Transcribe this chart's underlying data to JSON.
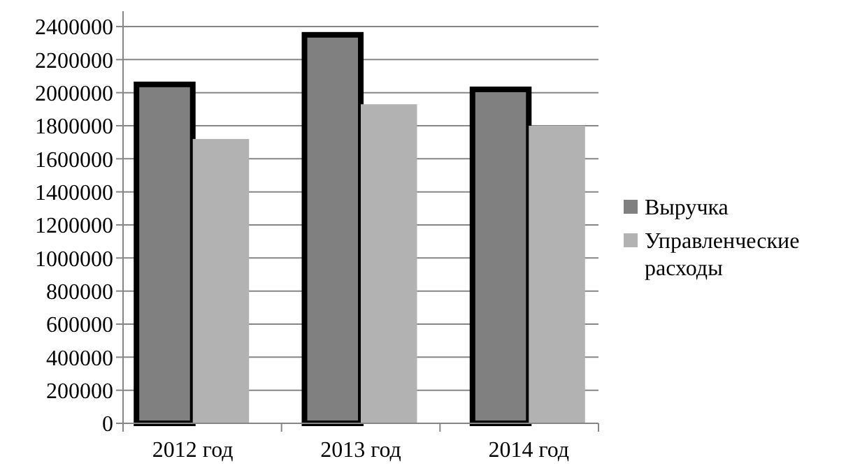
{
  "chart_data": {
    "type": "bar",
    "categories": [
      "2012 год",
      "2013 год",
      "2014 год"
    ],
    "series": [
      {
        "name": "Выручка",
        "color": "#808080",
        "values": [
          2050000,
          2350000,
          2020000
        ]
      },
      {
        "name": "Управленческие расходы",
        "color": "#b2b2b2",
        "values": [
          1720000,
          1930000,
          1800000
        ]
      }
    ],
    "ylim": [
      0,
      2400000
    ],
    "yticks": [
      0,
      200000,
      400000,
      600000,
      800000,
      1000000,
      1200000,
      1400000,
      1600000,
      1800000,
      2000000,
      2200000,
      2400000
    ],
    "grid": "y",
    "legend": "right"
  }
}
